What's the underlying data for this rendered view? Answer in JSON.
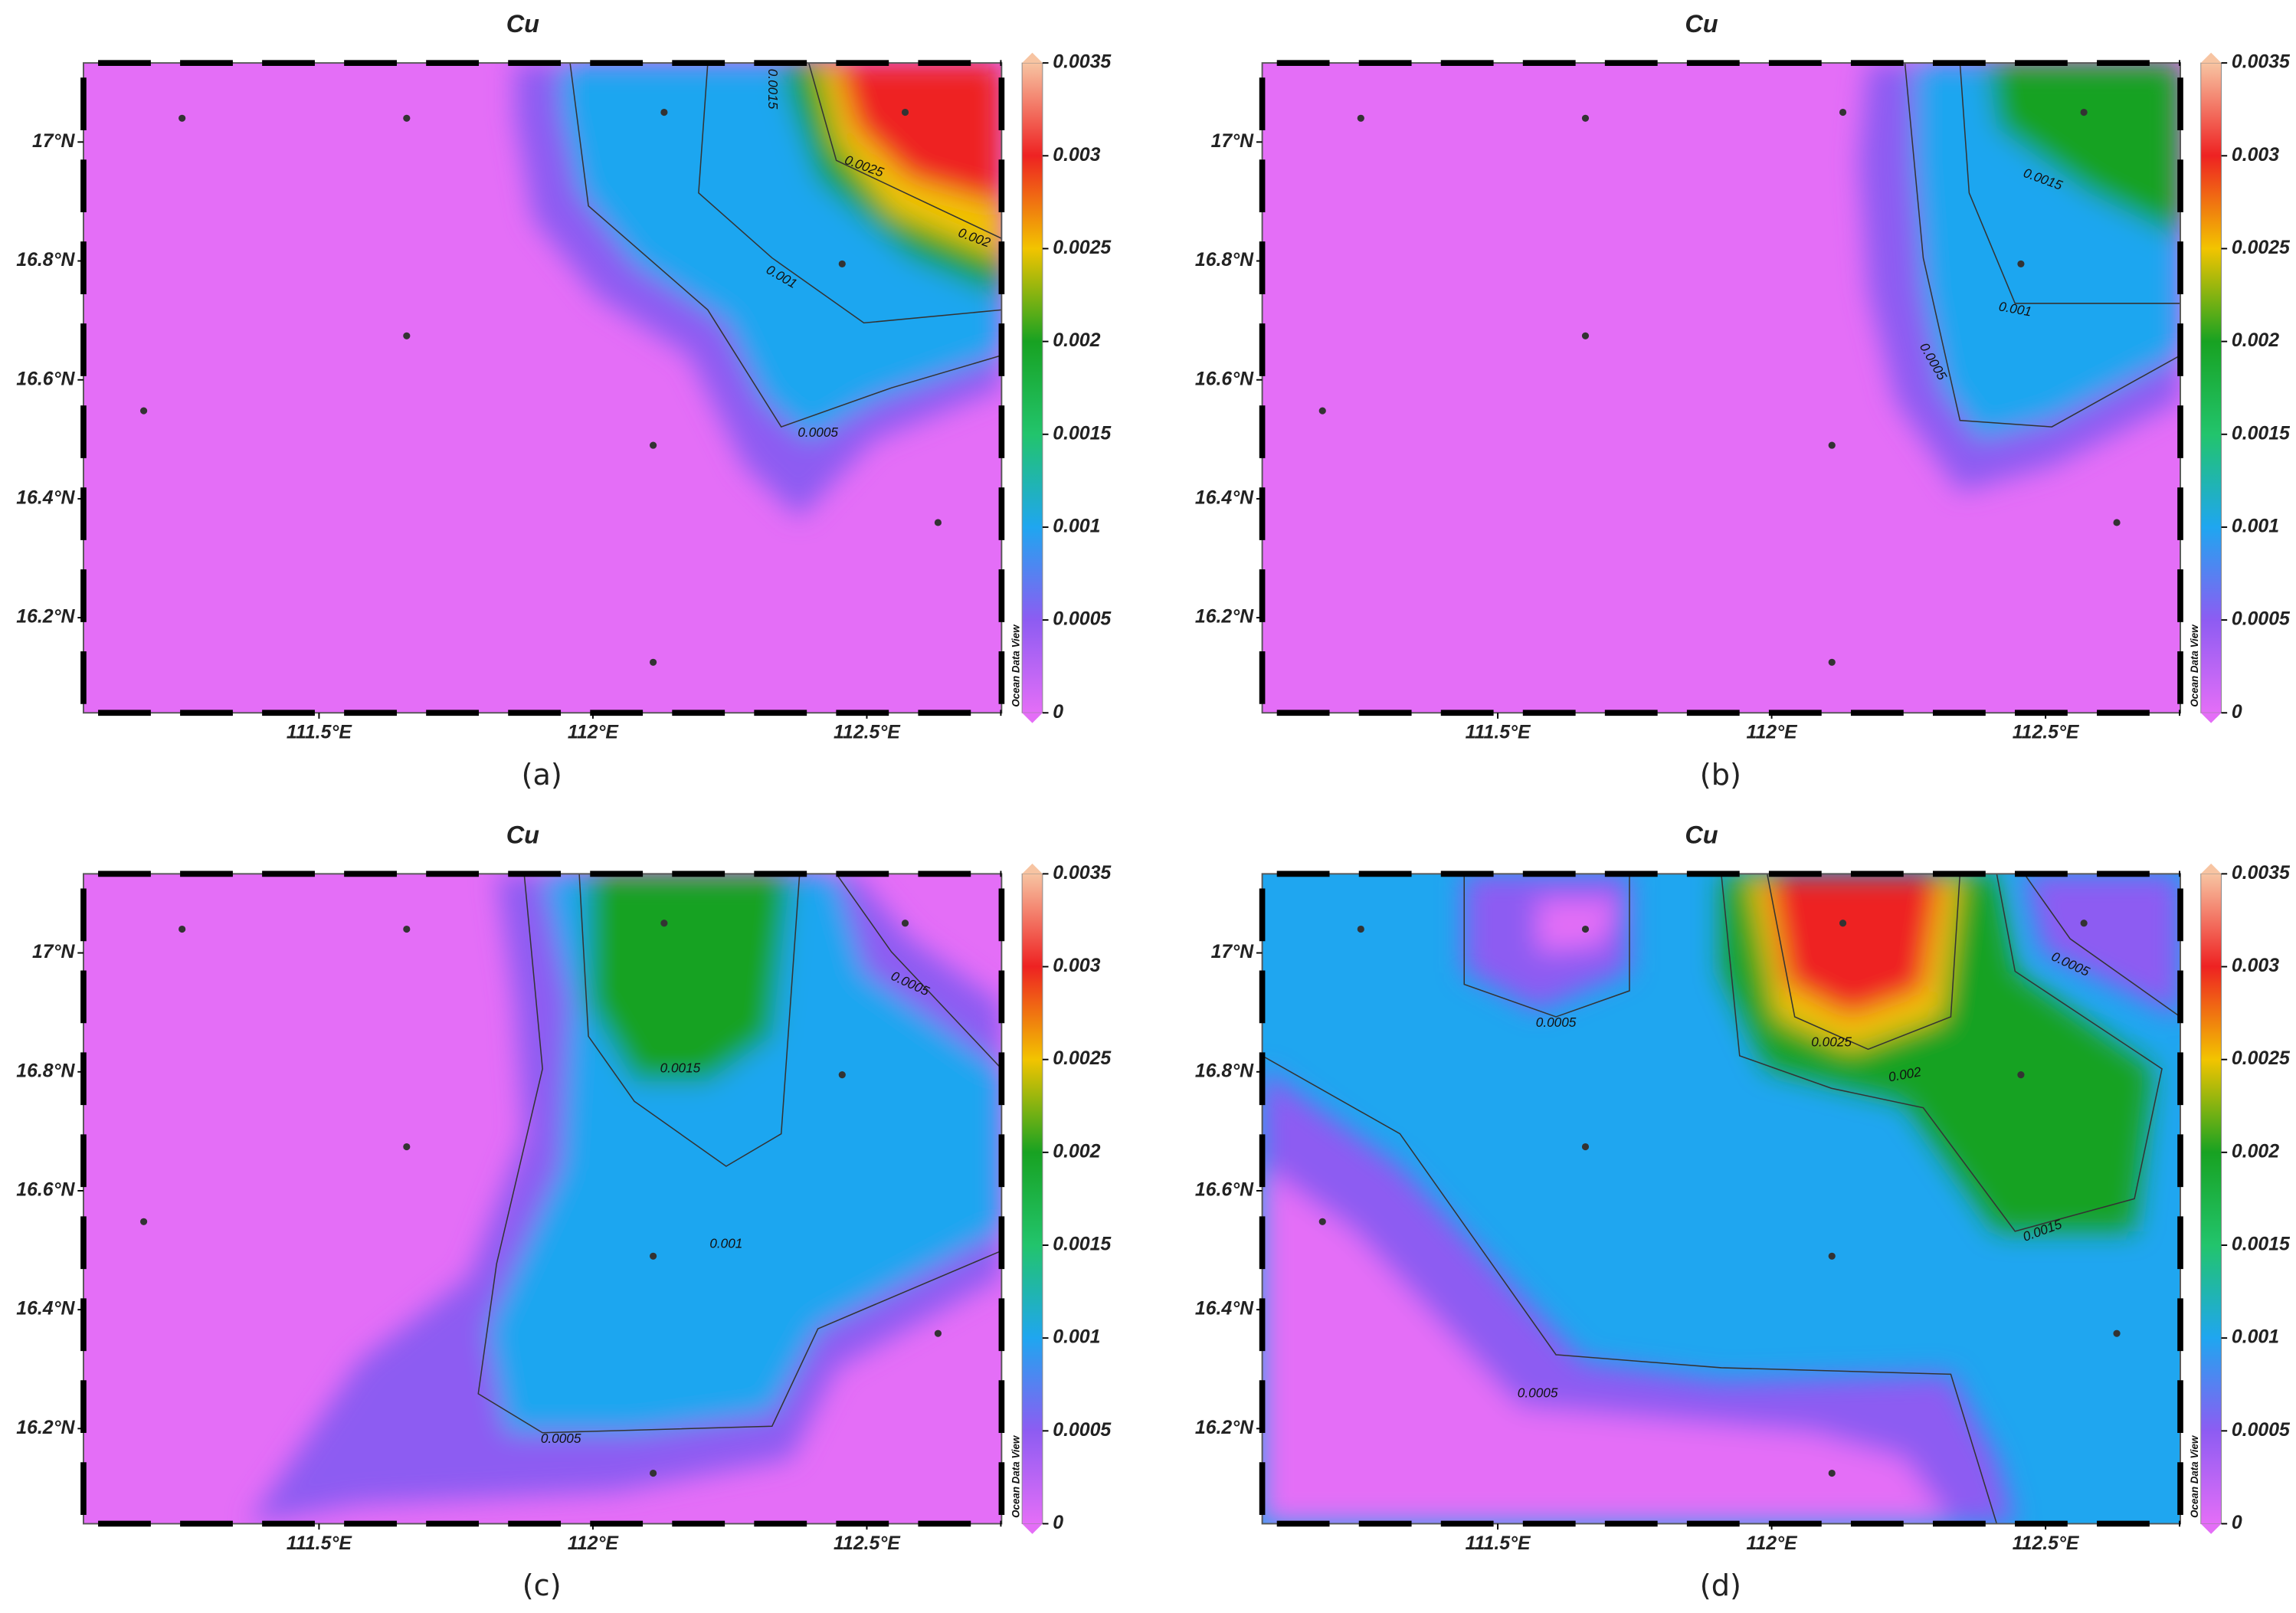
{
  "chart_data": [
    {
      "type": "contour",
      "title": "Cu",
      "caption": "(a)",
      "watermark": "Ocean Data View",
      "xlim": [
        111.07,
        112.746
      ],
      "ylim": [
        16.04,
        17.133
      ],
      "xticks": [
        {
          "value": 111.5,
          "label": "111.5°E"
        },
        {
          "value": 112,
          "label": "112°E"
        },
        {
          "value": 112.5,
          "label": "112.5°E"
        }
      ],
      "yticks": [
        {
          "value": 16.2,
          "label": "16.2°N"
        },
        {
          "value": 16.4,
          "label": "16.4°N"
        },
        {
          "value": 16.6,
          "label": "16.6°N"
        },
        {
          "value": 16.8,
          "label": "16.8°N"
        },
        {
          "value": 17,
          "label": "17°N"
        }
      ],
      "clim": [
        0,
        0.0035
      ],
      "cticks": [
        0,
        0.0005,
        0.001,
        0.0015,
        0.002,
        0.0025,
        0.003,
        0.0035
      ],
      "colorscale": [
        "#e46ef7",
        "#8d5cf2",
        "#1fa6f0",
        "#22c46c",
        "#18a222",
        "#f2c400",
        "#ee2222",
        "#f7c4a2"
      ],
      "stations": {
        "x": [
          111.25,
          111.66,
          112.13,
          112.57,
          112.455,
          111.66,
          111.18,
          112.11,
          112.63,
          112.11
        ],
        "y": [
          17.04,
          17.04,
          17.05,
          17.05,
          16.795,
          16.674,
          16.548,
          16.49,
          16.36,
          16.125
        ]
      },
      "contour_labels": [
        "0.0015",
        "0.0025",
        "0.002",
        "0.001",
        "0.0005"
      ]
    },
    {
      "type": "contour",
      "title": "Cu",
      "caption": "(b)",
      "watermark": "Ocean Data View",
      "xlim": [
        111.07,
        112.746
      ],
      "ylim": [
        16.04,
        17.133
      ],
      "xticks": [
        {
          "value": 111.5,
          "label": "111.5°E"
        },
        {
          "value": 112,
          "label": "112°E"
        },
        {
          "value": 112.5,
          "label": "112.5°E"
        }
      ],
      "yticks": [
        {
          "value": 16.2,
          "label": "16.2°N"
        },
        {
          "value": 16.4,
          "label": "16.4°N"
        },
        {
          "value": 16.6,
          "label": "16.6°N"
        },
        {
          "value": 16.8,
          "label": "16.8°N"
        },
        {
          "value": 17,
          "label": "17°N"
        }
      ],
      "clim": [
        0,
        0.0035
      ],
      "cticks": [
        0,
        0.0005,
        0.001,
        0.0015,
        0.002,
        0.0025,
        0.003,
        0.0035
      ],
      "colorscale": [
        "#e46ef7",
        "#8d5cf2",
        "#1fa6f0",
        "#22c46c",
        "#18a222",
        "#f2c400",
        "#ee2222",
        "#f7c4a2"
      ],
      "stations": {
        "x": [
          111.25,
          111.66,
          112.13,
          112.57,
          112.455,
          111.66,
          111.18,
          112.11,
          112.63,
          112.11
        ],
        "y": [
          17.04,
          17.04,
          17.05,
          17.05,
          16.795,
          16.674,
          16.548,
          16.49,
          16.36,
          16.125
        ]
      },
      "contour_labels": [
        "0.0015",
        "0.001",
        "0.0005"
      ]
    },
    {
      "type": "contour",
      "title": "Cu",
      "caption": "(c)",
      "watermark": "Ocean Data View",
      "xlim": [
        111.07,
        112.746
      ],
      "ylim": [
        16.04,
        17.133
      ],
      "xticks": [
        {
          "value": 111.5,
          "label": "111.5°E"
        },
        {
          "value": 112,
          "label": "112°E"
        },
        {
          "value": 112.5,
          "label": "112.5°E"
        }
      ],
      "yticks": [
        {
          "value": 16.2,
          "label": "16.2°N"
        },
        {
          "value": 16.4,
          "label": "16.4°N"
        },
        {
          "value": 16.6,
          "label": "16.6°N"
        },
        {
          "value": 16.8,
          "label": "16.8°N"
        },
        {
          "value": 17,
          "label": "17°N"
        }
      ],
      "clim": [
        0,
        0.0035
      ],
      "cticks": [
        0,
        0.0005,
        0.001,
        0.0015,
        0.002,
        0.0025,
        0.003,
        0.0035
      ],
      "colorscale": [
        "#e46ef7",
        "#8d5cf2",
        "#1fa6f0",
        "#22c46c",
        "#18a222",
        "#f2c400",
        "#ee2222",
        "#f7c4a2"
      ],
      "stations": {
        "x": [
          111.25,
          111.66,
          112.13,
          112.57,
          112.455,
          111.66,
          111.18,
          112.11,
          112.63,
          112.11
        ],
        "y": [
          17.04,
          17.04,
          17.05,
          17.05,
          16.795,
          16.674,
          16.548,
          16.49,
          16.36,
          16.125
        ]
      },
      "contour_labels": [
        "0.0005",
        "0.0015",
        "0.001",
        "0.0005"
      ]
    },
    {
      "type": "contour",
      "title": "Cu",
      "caption": "(d)",
      "watermark": "Ocean Data View",
      "xlim": [
        111.07,
        112.746
      ],
      "ylim": [
        16.04,
        17.133
      ],
      "xticks": [
        {
          "value": 111.5,
          "label": "111.5°E"
        },
        {
          "value": 112,
          "label": "112°E"
        },
        {
          "value": 112.5,
          "label": "112.5°E"
        }
      ],
      "yticks": [
        {
          "value": 16.2,
          "label": "16.2°N"
        },
        {
          "value": 16.4,
          "label": "16.4°N"
        },
        {
          "value": 16.6,
          "label": "16.6°N"
        },
        {
          "value": 16.8,
          "label": "16.8°N"
        },
        {
          "value": 17,
          "label": "17°N"
        }
      ],
      "clim": [
        0,
        0.0035
      ],
      "cticks": [
        0,
        0.0005,
        0.001,
        0.0015,
        0.002,
        0.0025,
        0.003,
        0.0035
      ],
      "colorscale": [
        "#e46ef7",
        "#8d5cf2",
        "#1fa6f0",
        "#22c46c",
        "#18a222",
        "#f2c400",
        "#ee2222",
        "#f7c4a2"
      ],
      "stations": {
        "x": [
          111.25,
          111.66,
          112.13,
          112.57,
          112.455,
          111.66,
          111.18,
          112.11,
          112.63,
          112.11
        ],
        "y": [
          17.04,
          17.04,
          17.05,
          17.05,
          16.795,
          16.674,
          16.548,
          16.49,
          16.36,
          16.125
        ]
      },
      "contour_labels": [
        "0.0005",
        "0.0025",
        "0.002",
        "0.0005",
        "0.0015",
        "0.0005"
      ]
    }
  ]
}
